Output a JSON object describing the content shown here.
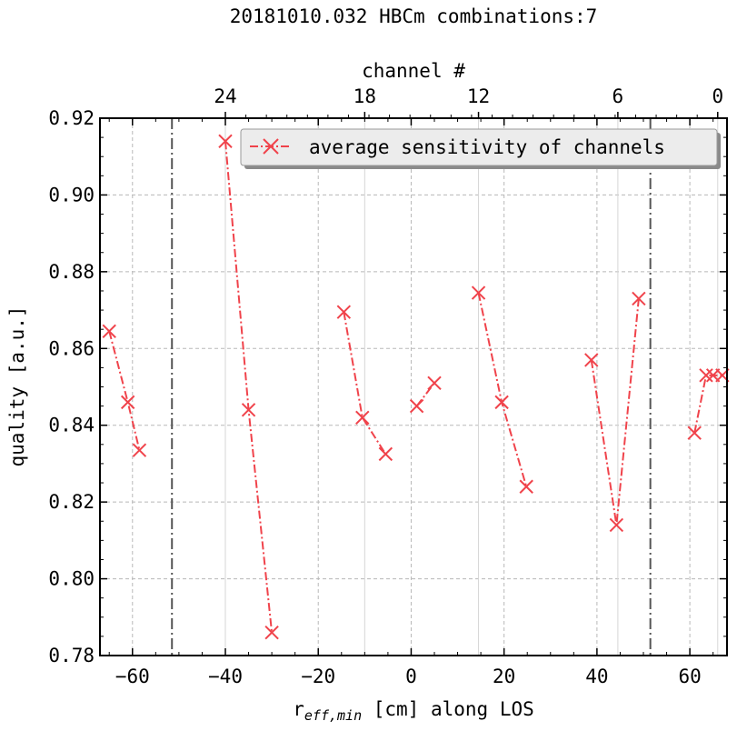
{
  "chart_data": {
    "type": "line",
    "title": "20181010.032 HBCm combinations:7",
    "xlabel_main": "r",
    "xlabel_sub": "eff,min",
    "xlabel_rest": " [cm] along LOS",
    "ylabel": "quality [a.u.]",
    "top_axis_label": "channel #",
    "xlim": [
      -67,
      68
    ],
    "ylim": [
      0.78,
      0.92
    ],
    "x_ticks": [
      -60,
      -40,
      -20,
      0,
      20,
      40,
      60
    ],
    "x_tick_labels": [
      "−60",
      "−40",
      "−20",
      "0",
      "20",
      "40",
      "60"
    ],
    "y_ticks": [
      0.78,
      0.8,
      0.82,
      0.84,
      0.86,
      0.88,
      0.9,
      0.92
    ],
    "y_tick_labels": [
      "0.78",
      "0.80",
      "0.82",
      "0.84",
      "0.86",
      "0.88",
      "0.90",
      "0.92"
    ],
    "top_ticks": [
      {
        "label": "24",
        "x": -40
      },
      {
        "label": "18",
        "x": -10
      },
      {
        "label": "12",
        "x": 14.5
      },
      {
        "label": "6",
        "x": 44.5
      },
      {
        "label": "0",
        "x": 66
      }
    ],
    "vlines": [
      -51.5,
      51.5
    ],
    "grid": true,
    "legend_position": "top-right",
    "series": [
      {
        "name": "average sensitivity of channels",
        "color": "#f0434b",
        "marker": "x",
        "linestyle": "dashdot",
        "segments": [
          [
            [
              -65,
              0.8645
            ],
            [
              -61,
              0.846
            ],
            [
              -58.5,
              0.8335
            ]
          ],
          [
            [
              -40,
              0.914
            ],
            [
              -35,
              0.844
            ],
            [
              -30,
              0.786
            ]
          ],
          [
            [
              -14.5,
              0.8695
            ],
            [
              -10.5,
              0.842
            ],
            [
              -5.5,
              0.8325
            ]
          ],
          [
            [
              1.2,
              0.845
            ],
            [
              5,
              0.851
            ]
          ],
          [
            [
              14.5,
              0.8745
            ],
            [
              19.5,
              0.846
            ],
            [
              24.8,
              0.824
            ]
          ],
          [
            [
              38.8,
              0.857
            ],
            [
              44.2,
              0.814
            ],
            [
              49,
              0.873
            ]
          ],
          [
            [
              61,
              0.838
            ],
            [
              63.5,
              0.853
            ],
            [
              65,
              0.853
            ],
            [
              67,
              0.853
            ]
          ]
        ]
      }
    ]
  }
}
